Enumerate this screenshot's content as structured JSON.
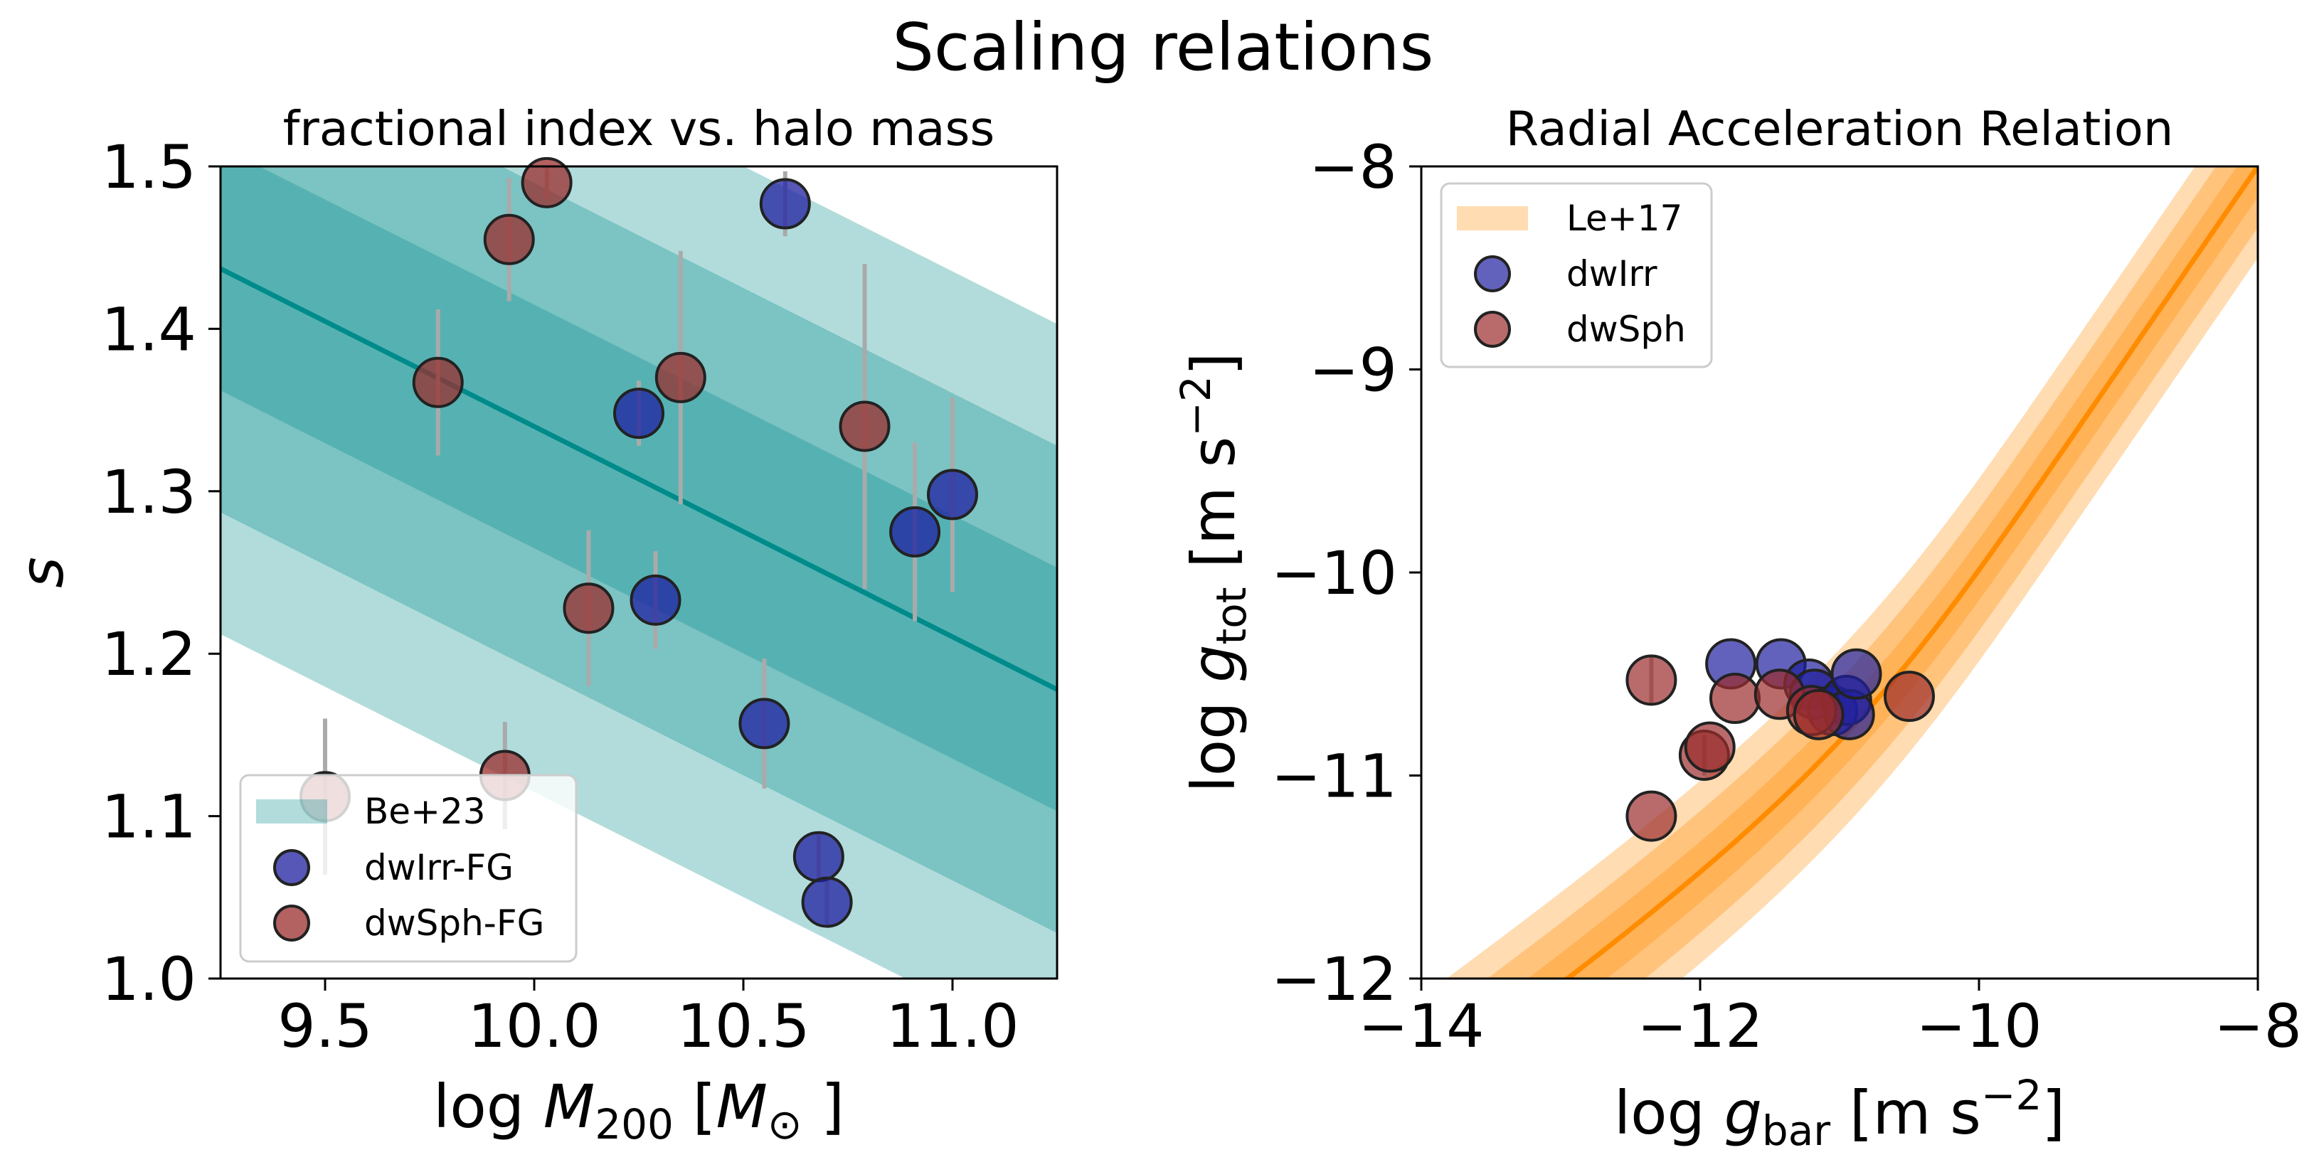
{
  "figure": {
    "title": "Scaling relations"
  },
  "chart_data": [
    {
      "type": "scatter",
      "title": "fractional index vs. halo mass",
      "xlabel": "log M200 [M⊙]",
      "xlabel_parts": {
        "prefix": "log ",
        "var": "M",
        "sub": "200",
        "pre_unit": " [",
        "unit_var": "M",
        "unit_sub": "⊙",
        "suffix": " ]"
      },
      "ylabel": "s",
      "xlim": [
        9.25,
        11.25
      ],
      "ylim": [
        1.0,
        1.5
      ],
      "xticks": [
        9.5,
        10.0,
        10.5,
        11.0
      ],
      "xtick_labels": [
        "9.5",
        "10.0",
        "10.5",
        "11.0"
      ],
      "yticks": [
        1.0,
        1.1,
        1.2,
        1.3,
        1.4,
        1.5
      ],
      "ytick_labels": [
        "1.0",
        "1.1",
        "1.2",
        "1.3",
        "1.4",
        "1.5"
      ],
      "relation": {
        "name": "Be+23",
        "line": [
          [
            9.25,
            1.437
          ],
          [
            11.25,
            1.178
          ]
        ],
        "band_half_widths": [
          0.075,
          0.15,
          0.225
        ],
        "color": "#008b8b"
      },
      "series": [
        {
          "name": "dwIrr-FG",
          "color": "#1f1fa0",
          "points": [
            {
              "x": 10.25,
              "y": 1.348,
              "yerr": 0.02
            },
            {
              "x": 10.29,
              "y": 1.233,
              "yerr": 0.03
            },
            {
              "x": 10.55,
              "y": 1.157,
              "yerr": 0.04
            },
            {
              "x": 10.6,
              "y": 1.477,
              "yerr": 0.02
            },
            {
              "x": 10.68,
              "y": 1.075,
              "yerr": 0.015
            },
            {
              "x": 10.7,
              "y": 1.047,
              "yerr": 0.015
            },
            {
              "x": 10.91,
              "y": 1.275,
              "yerr": 0.055
            },
            {
              "x": 11.0,
              "y": 1.298,
              "yerr": 0.06
            }
          ]
        },
        {
          "name": "dwSph-FG",
          "color": "#9b2c2c",
          "points": [
            {
              "x": 9.5,
              "y": 1.112,
              "yerr": 0.048
            },
            {
              "x": 9.77,
              "y": 1.367,
              "yerr": 0.045
            },
            {
              "x": 9.93,
              "y": 1.125,
              "yerr": 0.033
            },
            {
              "x": 9.94,
              "y": 1.455,
              "yerr": 0.038
            },
            {
              "x": 10.03,
              "y": 1.49,
              "yerr": 0.01
            },
            {
              "x": 10.13,
              "y": 1.228,
              "yerr": 0.048
            },
            {
              "x": 10.35,
              "y": 1.37,
              "yerr": 0.078
            },
            {
              "x": 10.79,
              "y": 1.34,
              "yerr": 0.1
            }
          ]
        }
      ],
      "legend": {
        "location": "lower-left",
        "entries": [
          "Be+23",
          "dwIrr-FG",
          "dwSph-FG"
        ]
      }
    },
    {
      "type": "scatter",
      "title": "Radial Acceleration Relation",
      "xlabel": "log gbar [m s−2]",
      "xlabel_parts": {
        "prefix": "log ",
        "var": "g",
        "sub": "bar",
        "unit": " [m s",
        "sup": "−2",
        "suffix": "]"
      },
      "ylabel": "log gtot [m s−2]",
      "ylabel_parts": {
        "prefix": "log ",
        "var": "g",
        "sub": "tot",
        "unit": " [m s",
        "sup": "−2",
        "suffix": "]"
      },
      "xlim": [
        -14,
        -8
      ],
      "ylim": [
        -12,
        -8
      ],
      "xticks": [
        -14,
        -12,
        -10,
        -8
      ],
      "xtick_labels": [
        "−14",
        "−12",
        "−10",
        "−8"
      ],
      "yticks": [
        -12,
        -11,
        -10,
        -9,
        -8
      ],
      "ytick_labels": [
        "−12",
        "−11",
        "−10",
        "−9",
        "−8"
      ],
      "relation": {
        "name": "Le+17",
        "g_dagger_log": -11.1,
        "band_half_widths": [
          0.15,
          0.3,
          0.45
        ],
        "color": "#ff8c00"
      },
      "series": [
        {
          "name": "dwIrr",
          "color": "#1f1fa0",
          "points": [
            {
              "x": -11.78,
              "y": -10.45
            },
            {
              "x": -11.42,
              "y": -10.45
            },
            {
              "x": -11.22,
              "y": -10.55
            },
            {
              "x": -11.18,
              "y": -10.6
            },
            {
              "x": -11.05,
              "y": -10.68
            },
            {
              "x": -10.95,
              "y": -10.63
            },
            {
              "x": -10.93,
              "y": -10.7
            },
            {
              "x": -10.88,
              "y": -10.5
            }
          ]
        },
        {
          "name": "dwSph",
          "color": "#9b2c2c",
          "points": [
            {
              "x": -12.35,
              "y": -10.53,
              "yerr": 0.12
            },
            {
              "x": -12.35,
              "y": -11.2
            },
            {
              "x": -11.97,
              "y": -10.9,
              "yerr": 0.1
            },
            {
              "x": -11.93,
              "y": -10.86
            },
            {
              "x": -11.75,
              "y": -10.62
            },
            {
              "x": -11.43,
              "y": -10.6
            },
            {
              "x": -11.2,
              "y": -10.68
            },
            {
              "x": -11.15,
              "y": -10.7
            },
            {
              "x": -10.5,
              "y": -10.61
            }
          ]
        }
      ],
      "legend": {
        "location": "upper-left",
        "entries": [
          "Le+17",
          "dwIrr",
          "dwSph"
        ]
      }
    }
  ]
}
